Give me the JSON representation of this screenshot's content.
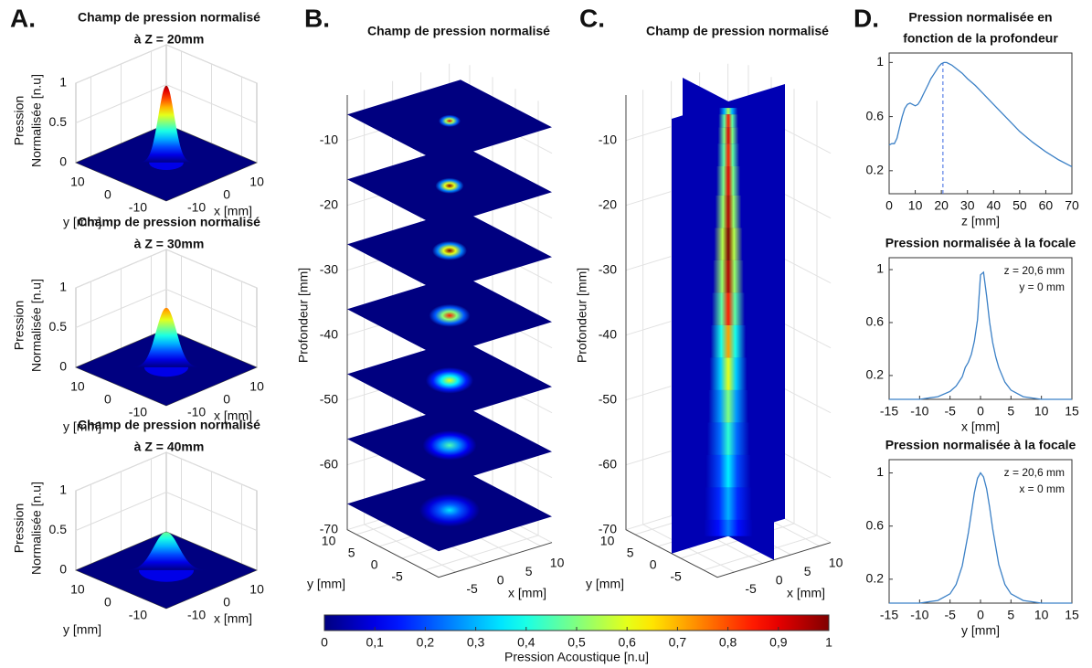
{
  "panel_labels": [
    "A.",
    "B.",
    "C.",
    "D."
  ],
  "chart_data": [
    {
      "type": "surface3d",
      "title": [
        "Champ de pression normalisé",
        "à Z = 20mm"
      ],
      "zlabel": [
        "Pression",
        "Normalisée [n.u]"
      ],
      "xlabel": "x [mm]",
      "ylabel": "y [mm]",
      "xlim": [
        -15,
        15
      ],
      "ylim": [
        -15,
        15
      ],
      "zlim": [
        0,
        1
      ],
      "xticks": [
        -10,
        0,
        10
      ],
      "yticks": [
        10,
        0,
        -10
      ],
      "zticks": [
        0,
        0.5,
        1
      ],
      "peak": 0.97,
      "width": 2.2,
      "colormap": "jet"
    },
    {
      "type": "surface3d",
      "title": [
        "Champ de pression normalisé",
        "à Z = 30mm"
      ],
      "zlabel": [
        "Pression",
        "Normalisée [n.u]"
      ],
      "xlabel": "x [mm]",
      "ylabel": "y [mm]",
      "xlim": [
        -15,
        15
      ],
      "ylim": [
        -15,
        15
      ],
      "zlim": [
        0,
        1
      ],
      "xticks": [
        -10,
        0,
        10
      ],
      "yticks": [
        10,
        0,
        -10
      ],
      "zticks": [
        0,
        0.5,
        1
      ],
      "peak": 0.75,
      "width": 2.8,
      "colormap": "jet"
    },
    {
      "type": "surface3d",
      "title": [
        "Champ de pression normalisé",
        "à Z = 40mm"
      ],
      "zlabel": [
        "Pression",
        "Normalisée [n.u]"
      ],
      "xlabel": "x [mm]",
      "ylabel": "y [mm]",
      "xlim": [
        -15,
        15
      ],
      "ylim": [
        -15,
        15
      ],
      "zlim": [
        0,
        1
      ],
      "xticks": [
        -10,
        0,
        10
      ],
      "yticks": [
        10,
        0,
        -10
      ],
      "zticks": [
        0,
        0.5,
        1
      ],
      "peak": 0.48,
      "width": 3.5,
      "colormap": "jet"
    },
    {
      "type": "slices3d",
      "title": [
        "Champ de pression normalisé"
      ],
      "zlabel": "Profondeur [mm]",
      "xlabel": "x [mm]",
      "ylabel": "y [mm]",
      "xlim": [
        -8,
        12
      ],
      "ylim": [
        -8,
        12
      ],
      "zlim": [
        -70,
        -3
      ],
      "xticks": [
        -5,
        0,
        5,
        10
      ],
      "yticks": [
        10,
        5,
        0,
        -5
      ],
      "zticks": [
        -10,
        -20,
        -30,
        -40,
        -50,
        -60,
        -70
      ],
      "slices_z": [
        -6,
        -16,
        -26,
        -36,
        -46,
        -56,
        -66
      ],
      "slices_peak": [
        0.9,
        1.0,
        1.0,
        0.85,
        0.6,
        0.45,
        0.35
      ],
      "colormap": "jet"
    },
    {
      "type": "planes3d",
      "title": [
        "Champ de pression normalisé"
      ],
      "zlabel": "Profondeur [mm]",
      "xlabel": "x [mm]",
      "ylabel": "y [mm]",
      "xlim": [
        -8,
        12
      ],
      "ylim": [
        -8,
        12
      ],
      "zlim": [
        -70,
        -3
      ],
      "xticks": [
        -5,
        0,
        5,
        10
      ],
      "yticks": [
        10,
        5,
        0,
        -5
      ],
      "zticks": [
        -10,
        -20,
        -30,
        -40,
        -50,
        -60,
        -70
      ],
      "beam_z": [
        -4,
        -6,
        -8,
        -11,
        -15,
        -20,
        -25,
        -30,
        -35,
        -40,
        -45,
        -50,
        -55,
        -60,
        -65,
        -70
      ],
      "beam_peak": [
        0.55,
        0.85,
        0.9,
        0.85,
        0.9,
        0.95,
        1.0,
        0.95,
        0.85,
        0.72,
        0.6,
        0.5,
        0.42,
        0.36,
        0.3,
        0.25
      ],
      "colormap": "jet"
    },
    {
      "type": "line",
      "title": [
        "Pression normalisée en",
        "fonction de la profondeur"
      ],
      "xlabel": "z [mm]",
      "xlim": [
        0,
        70
      ],
      "ylim": [
        0.03,
        1.07
      ],
      "xticks": [
        0,
        10,
        20,
        30,
        40,
        50,
        60,
        70
      ],
      "yticks": [
        0.2,
        0.6,
        1
      ],
      "color": "#3b80c6",
      "vline": 20.6,
      "x": [
        0,
        1,
        2,
        3,
        4,
        5,
        6,
        7,
        8,
        9,
        10,
        11,
        12,
        13,
        14,
        15,
        16,
        17,
        18,
        19,
        20,
        21,
        22,
        23,
        24,
        26,
        28,
        30,
        33,
        36,
        40,
        45,
        50,
        55,
        60,
        65,
        70
      ],
      "values": [
        0.39,
        0.4,
        0.4,
        0.44,
        0.52,
        0.6,
        0.66,
        0.69,
        0.7,
        0.69,
        0.68,
        0.69,
        0.72,
        0.76,
        0.8,
        0.84,
        0.88,
        0.91,
        0.94,
        0.97,
        0.99,
        1.0,
        1.0,
        0.99,
        0.98,
        0.95,
        0.92,
        0.88,
        0.83,
        0.77,
        0.69,
        0.59,
        0.49,
        0.41,
        0.34,
        0.28,
        0.23
      ]
    },
    {
      "type": "line",
      "title": [
        "Pression normalisée à la focale"
      ],
      "xlabel": "x [mm]",
      "annotations": [
        "z = 20,6 mm",
        "y = 0 mm"
      ],
      "xlim": [
        -15,
        15
      ],
      "ylim": [
        0.02,
        1.09
      ],
      "xticks": [
        -15,
        -10,
        -5,
        0,
        5,
        10,
        15
      ],
      "yticks": [
        0.2,
        0.6,
        1
      ],
      "color": "#3b80c6",
      "x": [
        -15,
        -10,
        -7,
        -5,
        -4,
        -3,
        -2.5,
        -2,
        -1.5,
        -1,
        -0.5,
        0,
        0.5,
        1,
        1.5,
        2,
        2.5,
        3,
        4,
        5,
        7,
        10,
        15
      ],
      "values": [
        0.02,
        0.02,
        0.04,
        0.08,
        0.12,
        0.19,
        0.26,
        0.3,
        0.36,
        0.46,
        0.62,
        0.96,
        0.98,
        0.8,
        0.6,
        0.45,
        0.34,
        0.26,
        0.15,
        0.09,
        0.04,
        0.02,
        0.02
      ]
    },
    {
      "type": "line",
      "title": [
        "Pression normalisée à la focale"
      ],
      "xlabel": "y [mm]",
      "annotations": [
        "z = 20,6 mm",
        "x = 0 mm"
      ],
      "xlim": [
        -15,
        15
      ],
      "ylim": [
        0.02,
        1.1
      ],
      "xticks": [
        -15,
        -10,
        -5,
        0,
        5,
        10,
        15
      ],
      "yticks": [
        0.2,
        0.6,
        1
      ],
      "color": "#3b80c6",
      "x": [
        -15,
        -10,
        -7,
        -5,
        -4,
        -3,
        -2,
        -1.5,
        -1,
        -0.5,
        0,
        0.5,
        1,
        1.5,
        2,
        3,
        4,
        5,
        7,
        10,
        15
      ],
      "values": [
        0.02,
        0.02,
        0.04,
        0.09,
        0.16,
        0.3,
        0.55,
        0.7,
        0.85,
        0.96,
        1.0,
        0.97,
        0.88,
        0.74,
        0.58,
        0.31,
        0.16,
        0.09,
        0.04,
        0.02,
        0.02
      ]
    },
    {
      "type": "colorbar",
      "xlabel": "Pression Acoustique [n.u]",
      "xlim": [
        0,
        1
      ],
      "colormap": "jet",
      "xticks": [
        0,
        {
          "value": 0.1,
          "label": "0,1"
        },
        {
          "value": 0.2,
          "label": "0,2"
        },
        {
          "value": 0.3,
          "label": "0,3"
        },
        {
          "value": 0.4,
          "label": "0,4"
        },
        {
          "value": 0.5,
          "label": "0,5"
        },
        {
          "value": 0.6,
          "label": "0,6"
        },
        {
          "value": 0.7,
          "label": "0,7"
        },
        {
          "value": 0.8,
          "label": "0,8"
        },
        {
          "value": 0.9,
          "label": "0,9"
        },
        1
      ]
    }
  ]
}
